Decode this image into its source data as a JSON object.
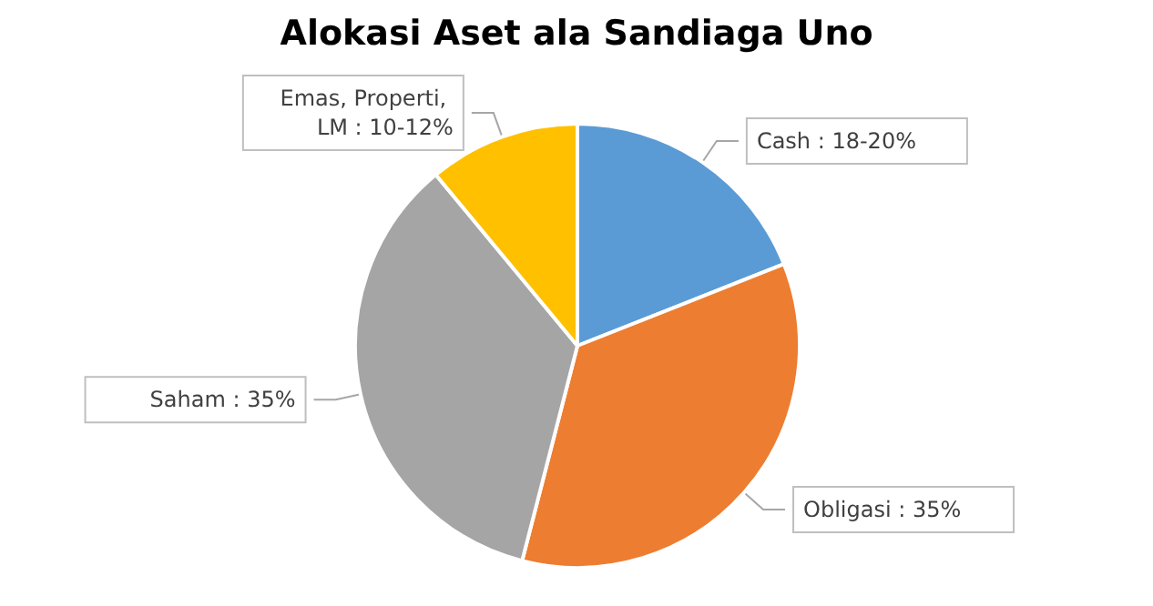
{
  "chart_data": {
    "type": "pie",
    "title": "Alokasi Aset ala Sandiaga Uno",
    "categories": [
      "Cash : 18-20%",
      "Obligasi : 35%",
      "Saham : 35%",
      "Emas, Properti, LM : 10-12%"
    ],
    "values": [
      19,
      35,
      35,
      11
    ],
    "colors": [
      "#5b9bd5",
      "#ed7d31",
      "#a5a5a5",
      "#ffc000"
    ],
    "legend": false
  }
}
